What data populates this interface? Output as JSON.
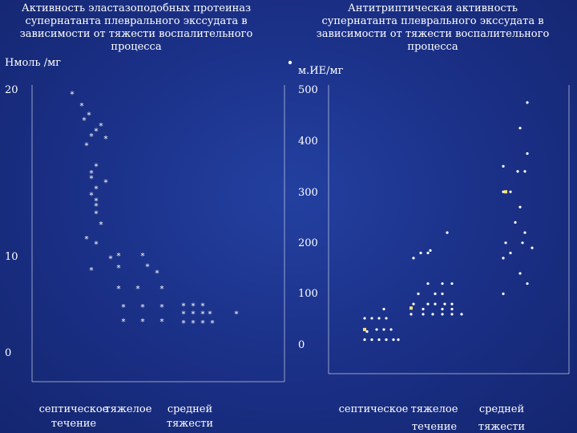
{
  "chart_data": [
    {
      "type": "scatter",
      "title": [
        "Активность эластазоподобных протеиназ",
        "супернатанта плеврального экссудата в",
        "зависимости от тяжести воспалительного",
        "процесса"
      ],
      "ylabel": "Нмоль /мг",
      "yticks": [
        "20",
        "10",
        "0"
      ],
      "ylim": [
        0,
        20
      ],
      "categories": [
        [
          "септическое",
          "течение"
        ],
        [
          "тяжелое",
          ""
        ],
        [
          "средней",
          "тяжести"
        ]
      ],
      "marker": "*",
      "marker_color": "#ffffff",
      "series": [
        {
          "category": 0,
          "x": [
            0.3,
            0.5,
            0.65,
            0.55,
            0.9,
            0.8,
            0.7,
            1.0,
            0.6,
            0.8,
            0.7,
            0.7,
            1.0,
            0.8,
            0.7,
            0.8,
            0.8,
            0.8,
            0.9,
            0.6,
            0.8,
            1.1,
            0.7
          ],
          "y": [
            19.7,
            18.8,
            18.1,
            17.7,
            17.3,
            16.9,
            16.5,
            16.3,
            15.8,
            14.2,
            13.7,
            13.3,
            13.0,
            12.5,
            12.0,
            11.6,
            11.2,
            10.6,
            9.8,
            8.7,
            8.3,
            7.2,
            6.3
          ]
        },
        {
          "category": 1,
          "x": [
            0.1,
            0.6,
            0.1,
            0.7,
            0.9,
            0.1,
            0.5,
            1.0,
            0.2,
            0.6,
            1.0,
            0.2,
            0.6,
            1.0
          ],
          "y": [
            7.4,
            7.4,
            6.5,
            6.6,
            6.1,
            4.9,
            4.9,
            4.9,
            3.5,
            3.5,
            3.5,
            2.4,
            2.4,
            2.4
          ]
        },
        {
          "category": 2,
          "x": [
            0.15,
            0.35,
            0.55,
            0.15,
            0.35,
            0.55,
            0.7,
            1.25,
            0.15,
            0.35,
            0.55,
            0.75
          ],
          "y": [
            3.6,
            3.6,
            3.6,
            3.0,
            3.0,
            3.0,
            3.0,
            3.0,
            2.3,
            2.3,
            2.3,
            2.3
          ]
        }
      ]
    },
    {
      "type": "scatter",
      "title": [
        "Антитриптическая активность",
        "супернатанта плеврального экссудата в",
        "зависимости от тяжести воспалительного",
        "процесса"
      ],
      "ylabel": "м.ИЕ/мг",
      "yticks": [
        "500",
        "400",
        "300",
        "200",
        "100",
        "0"
      ],
      "ylim": [
        0,
        500
      ],
      "categories": [
        [
          "септическое",
          ""
        ],
        [
          "тяжелое",
          "течение"
        ],
        [
          "средней",
          "тяжести"
        ]
      ],
      "marker": "•",
      "marker_color": "#ffffff",
      "highlight_color": "#ffe07a",
      "series": [
        {
          "category": 0,
          "x": [
            0.65,
            0.25,
            0.4,
            0.55,
            0.7,
            0.5,
            0.3,
            0.65,
            0.8,
            0.25,
            0.4,
            0.55,
            0.7,
            0.85,
            0.95
          ],
          "y": [
            70,
            52,
            52,
            52,
            52,
            30,
            26,
            30,
            30,
            10,
            10,
            10,
            10,
            10,
            10
          ]
        },
        {
          "category": 1,
          "x": [
            0.8,
            0.45,
            0.1,
            0.25,
            0.4,
            0.7,
            0.4,
            0.9,
            0.2,
            0.55,
            0.7,
            0.1,
            0.4,
            0.55,
            0.75,
            0.9,
            0.3,
            0.7,
            0.9,
            0.05,
            0.3,
            0.5,
            0.7,
            0.9,
            1.1
          ],
          "y": [
            220,
            185,
            170,
            180,
            180,
            120,
            120,
            120,
            100,
            100,
            100,
            80,
            80,
            80,
            80,
            80,
            70,
            70,
            70,
            60,
            60,
            60,
            60,
            60,
            60
          ]
        },
        {
          "category": 2,
          "x": [
            1.0,
            0.85,
            1.0,
            0.5,
            0.8,
            0.95,
            0.5,
            0.65,
            0.85,
            0.75,
            0.95,
            0.55,
            0.9,
            1.1,
            0.65,
            0.5,
            0.85,
            1.0,
            0.5
          ],
          "y": [
            475,
            425,
            375,
            350,
            340,
            340,
            300,
            300,
            270,
            240,
            220,
            200,
            200,
            190,
            180,
            170,
            140,
            120,
            100
          ]
        }
      ]
    }
  ]
}
